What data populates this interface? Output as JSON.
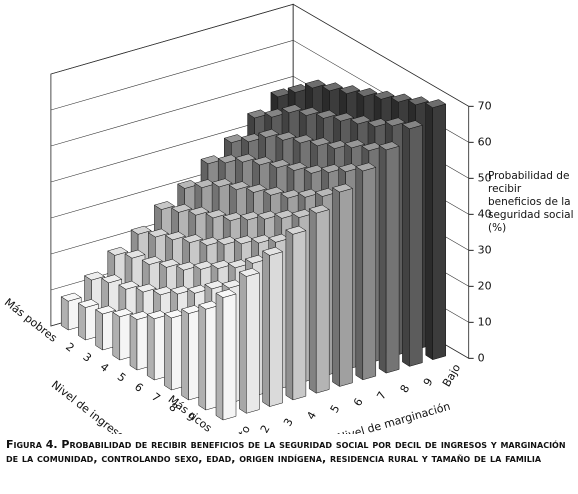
{
  "chart_data": {
    "type": "bar3d",
    "caption": "Figura 4. Probabilidad de recibir beneficios de la seguridad social por decil de ingresos y marginación de la  comunidad, controlando sexo, edad, origen indígena, residencia rural y tamaño de la familia",
    "y_label": "Probabilidad de recibir beneficios de la seguridad social (%)",
    "x_label": "Nivel de ingresos",
    "z_label": "Nivel de marginación",
    "categories": [
      "Más pobres",
      "2",
      "3",
      "4",
      "5",
      "6",
      "7",
      "8",
      "9",
      "Más ricos"
    ],
    "series": [
      {
        "name": "Alto",
        "color": "#f5f5f5",
        "values": [
          8,
          9,
          10,
          12,
          14,
          17,
          20,
          24,
          28,
          34
        ]
      },
      {
        "name": "2",
        "color": "#e8e8e8",
        "values": [
          12,
          14,
          15,
          17,
          19,
          22,
          25,
          29,
          32,
          38
        ]
      },
      {
        "name": "3",
        "color": "#dadada",
        "values": [
          17,
          19,
          20,
          22,
          24,
          27,
          30,
          33,
          37,
          42
        ]
      },
      {
        "name": "4",
        "color": "#c8c8c8",
        "values": [
          21,
          23,
          25,
          27,
          29,
          32,
          35,
          38,
          41,
          46
        ]
      },
      {
        "name": "5",
        "color": "#b4b4b4",
        "values": [
          26,
          28,
          30,
          32,
          34,
          37,
          40,
          43,
          46,
          50
        ]
      },
      {
        "name": "6",
        "color": "#a0a0a0",
        "values": [
          30,
          33,
          36,
          38,
          40,
          42,
          44,
          47,
          50,
          54
        ]
      },
      {
        "name": "7",
        "color": "#8a8a8a",
        "values": [
          35,
          38,
          41,
          43,
          45,
          47,
          49,
          52,
          55,
          58
        ]
      },
      {
        "name": "8",
        "color": "#747474",
        "values": [
          39,
          42,
          46,
          48,
          50,
          52,
          54,
          57,
          59,
          62
        ]
      },
      {
        "name": "9",
        "color": "#5c5c5c",
        "values": [
          44,
          47,
          51,
          53,
          55,
          57,
          59,
          61,
          64,
          66
        ]
      },
      {
        "name": "Bajo",
        "color": "#3c3c3c",
        "values": [
          48,
          52,
          56,
          58,
          60,
          62,
          64,
          66,
          68,
          70
        ]
      }
    ],
    "ylim": [
      0,
      70
    ],
    "yticks": [
      0,
      10,
      20,
      30,
      40,
      50,
      60,
      70
    ],
    "grid": true
  }
}
